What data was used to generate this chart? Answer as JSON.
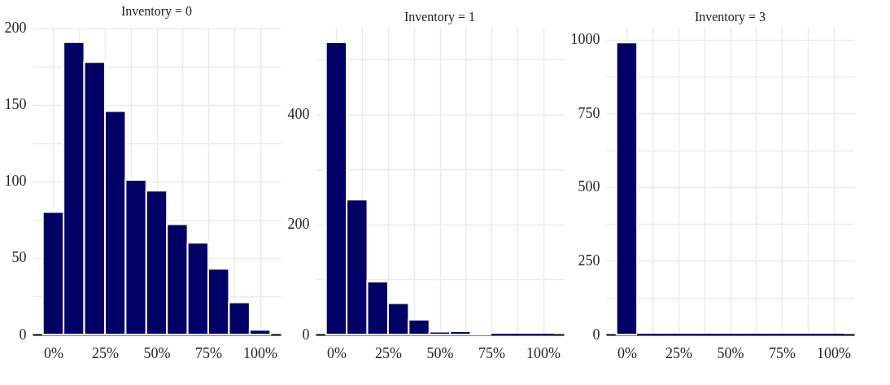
{
  "chart_data": [
    {
      "type": "histogram",
      "title": "Inventory = 0",
      "bins": [
        -5,
        5,
        15,
        25,
        35,
        45,
        55,
        65,
        75,
        85,
        95,
        105
      ],
      "values": [
        80,
        191,
        178,
        146,
        101,
        94,
        72,
        60,
        43,
        21,
        3
      ],
      "color": "#000066",
      "xlim": [
        -10,
        110
      ],
      "xticks": [
        {
          "value": 0,
          "label": "0%"
        },
        {
          "value": 12.5,
          "label": null
        },
        {
          "value": 25,
          "label": "25%"
        },
        {
          "value": 37.5,
          "label": null
        },
        {
          "value": 50,
          "label": "50%"
        },
        {
          "value": 62.5,
          "label": null
        },
        {
          "value": 75,
          "label": "75%"
        },
        {
          "value": 87.5,
          "label": null
        },
        {
          "value": 100,
          "label": "100%"
        }
      ],
      "ylim": [
        0,
        201
      ],
      "yticks": [
        0,
        {
          "value": 25,
          "label": null
        },
        50,
        {
          "value": 75,
          "label": null
        },
        100,
        {
          "value": 125,
          "label": null
        },
        150,
        {
          "value": 175,
          "label": null
        },
        200
      ],
      "grid": true
    },
    {
      "type": "histogram",
      "title": "Inventory = 1",
      "bins": [
        -5,
        5,
        15,
        25,
        35,
        45,
        55,
        65,
        75,
        85,
        95,
        105
      ],
      "values": [
        531,
        245,
        96,
        57,
        27,
        5,
        6,
        3,
        0,
        0,
        0
      ],
      "color": "#000066",
      "xlim": [
        -10,
        110
      ],
      "xticks": [
        {
          "value": 0,
          "label": "0%"
        },
        {
          "value": 12.5,
          "label": null
        },
        {
          "value": 25,
          "label": "25%"
        },
        {
          "value": 37.5,
          "label": null
        },
        {
          "value": 50,
          "label": "50%"
        },
        {
          "value": 62.5,
          "label": null
        },
        {
          "value": 75,
          "label": "75%"
        },
        {
          "value": 87.5,
          "label": null
        },
        {
          "value": 100,
          "label": "100%"
        }
      ],
      "ylim": [
        0,
        559
      ],
      "yticks": [
        0,
        {
          "value": 100,
          "label": null
        },
        200,
        {
          "value": 300,
          "label": null
        },
        400,
        {
          "value": 500,
          "label": null
        }
      ],
      "grid": true
    },
    {
      "type": "histogram",
      "title": "Inventory = 3",
      "bins": [
        -5,
        5,
        15,
        25,
        35,
        45,
        55,
        65,
        75,
        85,
        95,
        105
      ],
      "values": [
        991,
        0,
        0,
        0,
        0,
        0,
        0,
        0,
        0,
        0,
        0
      ],
      "color": "#000066",
      "xlim": [
        -10,
        110
      ],
      "xticks": [
        {
          "value": 0,
          "label": "0%"
        },
        {
          "value": 12.5,
          "label": null
        },
        {
          "value": 25,
          "label": "25%"
        },
        {
          "value": 37.5,
          "label": null
        },
        {
          "value": 50,
          "label": "50%"
        },
        {
          "value": 62.5,
          "label": null
        },
        {
          "value": 75,
          "label": "75%"
        },
        {
          "value": 87.5,
          "label": null
        },
        {
          "value": 100,
          "label": "100%"
        }
      ],
      "ylim": [
        0,
        1044
      ],
      "yticks": [
        0,
        {
          "value": 125,
          "label": null
        },
        250,
        {
          "value": 375,
          "label": null
        },
        500,
        {
          "value": 625,
          "label": null
        },
        750,
        {
          "value": 875,
          "label": null
        },
        1000
      ],
      "grid": true
    }
  ]
}
